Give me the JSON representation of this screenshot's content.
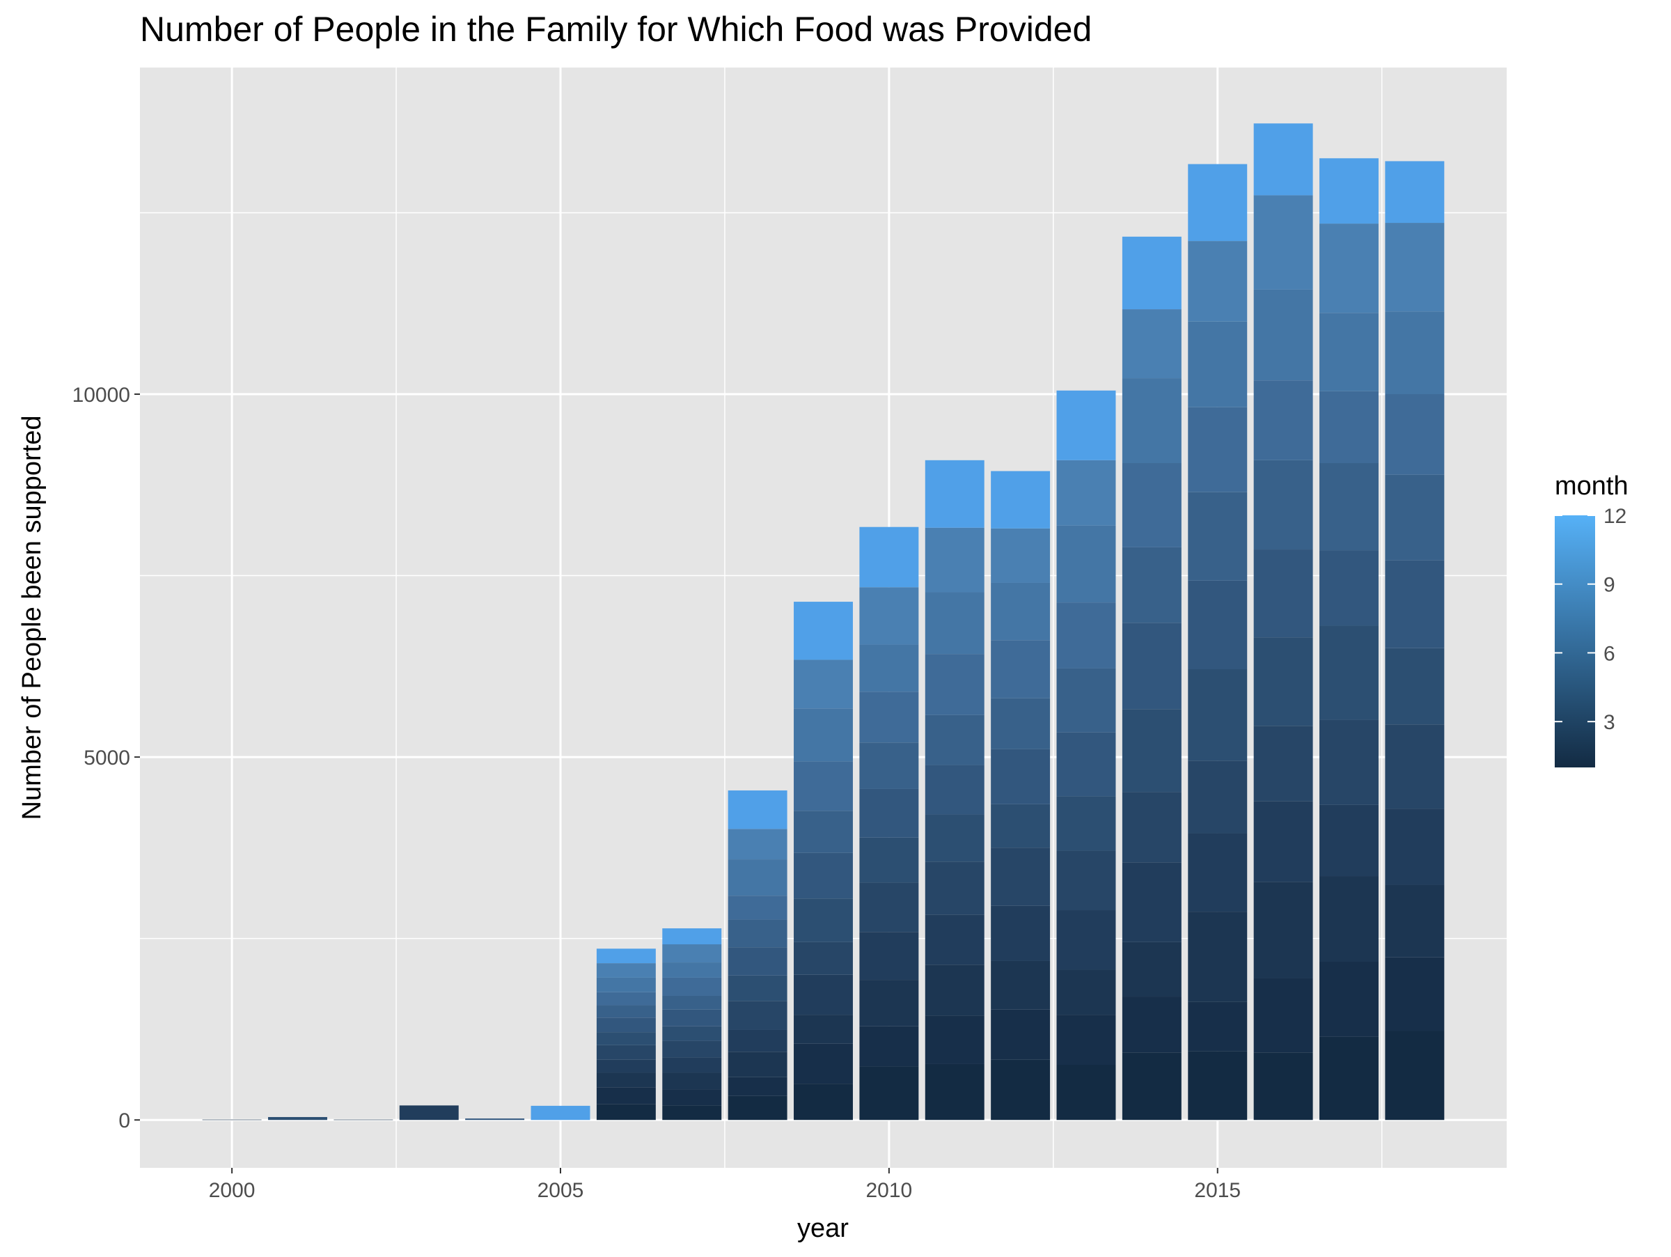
{
  "chart_data": {
    "type": "bar",
    "stacked": true,
    "title": "Number of People in the Family for Which Food was Provided",
    "xlabel": "year",
    "ylabel": "Number of People been supported",
    "x_ticks": [
      2000,
      2005,
      2010,
      2015
    ],
    "y_ticks": [
      0,
      5000,
      10000
    ],
    "xlim": [
      1998.6,
      2019.4
    ],
    "ylim": [
      -660,
      14500
    ],
    "grid": true,
    "legend": {
      "title": "month",
      "type": "colorbar",
      "position": "right",
      "ticks": [
        3,
        6,
        9,
        12
      ],
      "range": [
        1,
        12
      ],
      "low_color": "#132B43",
      "high_color": "#56B1F7"
    },
    "panel_background": "#E5E5E5",
    "grid_color": "#FFFFFF",
    "month_colors": [
      "#132B43",
      "#172F4A",
      "#1C3652",
      "#213D5C",
      "#274667",
      "#2C4F72",
      "#32577E",
      "#38618A",
      "#3F6B98",
      "#4476A5",
      "#4A80B2",
      "#50A0E8"
    ],
    "series_values": {
      "years": [
        2000,
        2001,
        2002,
        2003,
        2004,
        2005,
        2006,
        2007,
        2008,
        2009,
        2010,
        2011,
        2012,
        2013,
        2014,
        2015,
        2016,
        2017,
        2018
      ],
      "monthly_totals": [
        [
          [
            1,
            5
          ]
        ],
        [
          [
            6,
            40
          ]
        ],
        [
          [
            1,
            5
          ]
        ],
        [
          [
            4,
            200
          ]
        ],
        [
          [
            7,
            20
          ]
        ],
        [
          [
            12,
            195
          ]
        ],
        [
          [
            1,
            220
          ],
          [
            2,
            230
          ],
          [
            3,
            200
          ],
          [
            4,
            180
          ],
          [
            5,
            200
          ],
          [
            6,
            180
          ],
          [
            7,
            200
          ],
          [
            8,
            170
          ],
          [
            9,
            180
          ],
          [
            10,
            200
          ],
          [
            11,
            200
          ],
          [
            12,
            200
          ]
        ],
        [
          [
            1,
            200
          ],
          [
            2,
            220
          ],
          [
            3,
            230
          ],
          [
            4,
            210
          ],
          [
            5,
            230
          ],
          [
            6,
            200
          ],
          [
            7,
            230
          ],
          [
            8,
            190
          ],
          [
            9,
            250
          ],
          [
            10,
            210
          ],
          [
            11,
            250
          ],
          [
            12,
            220
          ]
        ],
        [
          [
            1,
            330
          ],
          [
            2,
            260
          ],
          [
            3,
            350
          ],
          [
            4,
            300
          ],
          [
            5,
            400
          ],
          [
            6,
            350
          ],
          [
            7,
            390
          ],
          [
            8,
            380
          ],
          [
            9,
            330
          ],
          [
            10,
            500
          ],
          [
            11,
            420
          ],
          [
            12,
            530
          ]
        ],
        [
          [
            1,
            500
          ],
          [
            2,
            550
          ],
          [
            3,
            400
          ],
          [
            4,
            550
          ],
          [
            5,
            450
          ],
          [
            6,
            600
          ],
          [
            7,
            630
          ],
          [
            8,
            580
          ],
          [
            9,
            680
          ],
          [
            10,
            730
          ],
          [
            11,
            670
          ],
          [
            12,
            800
          ]
        ],
        [
          [
            1,
            740
          ],
          [
            2,
            550
          ],
          [
            3,
            640
          ],
          [
            4,
            660
          ],
          [
            5,
            680
          ],
          [
            6,
            620
          ],
          [
            7,
            670
          ],
          [
            8,
            640
          ],
          [
            9,
            700
          ],
          [
            10,
            650
          ],
          [
            11,
            790
          ],
          [
            12,
            830
          ]
        ],
        [
          [
            1,
            770
          ],
          [
            2,
            670
          ],
          [
            3,
            700
          ],
          [
            4,
            690
          ],
          [
            5,
            730
          ],
          [
            6,
            650
          ],
          [
            7,
            680
          ],
          [
            8,
            690
          ],
          [
            9,
            840
          ],
          [
            10,
            850
          ],
          [
            11,
            890
          ],
          [
            12,
            930
          ]
        ],
        [
          [
            1,
            830
          ],
          [
            2,
            690
          ],
          [
            3,
            670
          ],
          [
            4,
            760
          ],
          [
            5,
            800
          ],
          [
            6,
            600
          ],
          [
            7,
            760
          ],
          [
            8,
            700
          ],
          [
            9,
            800
          ],
          [
            10,
            790
          ],
          [
            11,
            750
          ],
          [
            12,
            790
          ]
        ],
        [
          [
            1,
            760
          ],
          [
            2,
            690
          ],
          [
            3,
            620
          ],
          [
            4,
            820
          ],
          [
            5,
            820
          ],
          [
            6,
            750
          ],
          [
            7,
            880
          ],
          [
            8,
            880
          ],
          [
            9,
            910
          ],
          [
            10,
            1060
          ],
          [
            11,
            900
          ],
          [
            12,
            960
          ]
        ],
        [
          [
            1,
            930
          ],
          [
            2,
            770
          ],
          [
            3,
            750
          ],
          [
            4,
            1100
          ],
          [
            5,
            970
          ],
          [
            6,
            1140
          ],
          [
            7,
            1190
          ],
          [
            8,
            1040
          ],
          [
            9,
            1160
          ],
          [
            10,
            1170
          ],
          [
            11,
            950
          ],
          [
            12,
            1000
          ]
        ],
        [
          [
            1,
            950
          ],
          [
            2,
            680
          ],
          [
            3,
            1240
          ],
          [
            4,
            1080
          ],
          [
            5,
            1000
          ],
          [
            6,
            1260
          ],
          [
            7,
            1220
          ],
          [
            8,
            1220
          ],
          [
            9,
            1170
          ],
          [
            10,
            1180
          ],
          [
            11,
            1110
          ],
          [
            12,
            1060
          ]
        ],
        [
          [
            1,
            930
          ],
          [
            2,
            1020
          ],
          [
            3,
            1330
          ],
          [
            4,
            1110
          ],
          [
            5,
            1040
          ],
          [
            6,
            1220
          ],
          [
            7,
            1210
          ],
          [
            8,
            1230
          ],
          [
            9,
            1100
          ],
          [
            10,
            1250
          ],
          [
            11,
            1300
          ],
          [
            12,
            990
          ]
        ],
        [
          [
            1,
            1150
          ],
          [
            2,
            1030
          ],
          [
            3,
            1180
          ],
          [
            4,
            980
          ],
          [
            5,
            1170
          ],
          [
            6,
            1300
          ],
          [
            7,
            1040
          ],
          [
            8,
            1200
          ],
          [
            9,
            990
          ],
          [
            10,
            1080
          ],
          [
            11,
            1230
          ],
          [
            12,
            900
          ]
        ],
        [
          [
            1,
            1230
          ],
          [
            2,
            1010
          ],
          [
            3,
            1000
          ],
          [
            4,
            1050
          ],
          [
            5,
            1160
          ],
          [
            6,
            1050
          ],
          [
            7,
            1210
          ],
          [
            8,
            1180
          ],
          [
            9,
            1110
          ],
          [
            10,
            1140
          ],
          [
            11,
            1220
          ],
          [
            12,
            850
          ]
        ]
      ]
    }
  }
}
